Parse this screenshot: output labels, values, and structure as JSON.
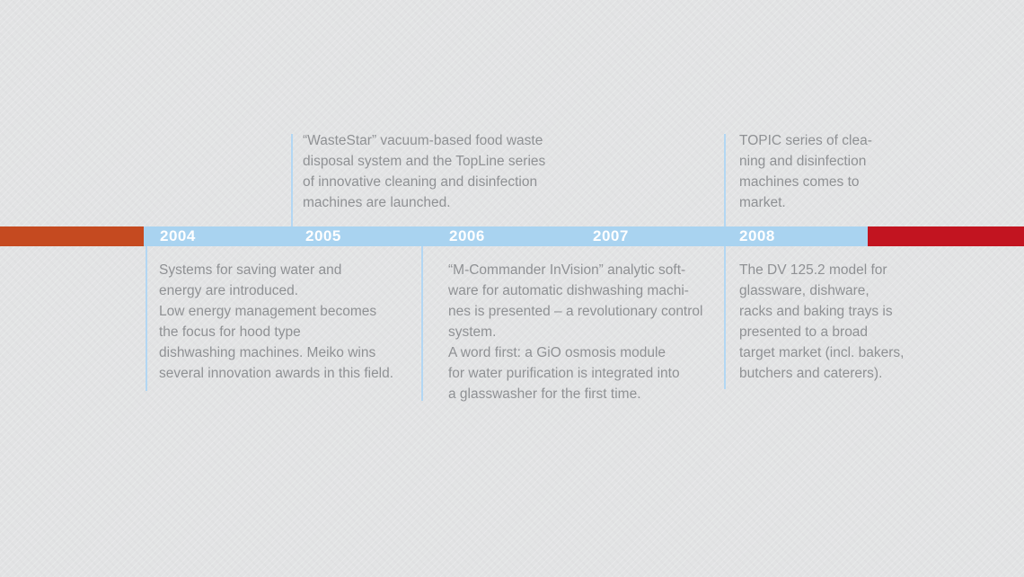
{
  "diagram_type": "company-history-timeline",
  "colors": {
    "background": "#e2e3e4",
    "bar_previous_period": "#c54a20",
    "bar_active_period": "#a9d3f0",
    "bar_next_period": "#c21420",
    "year_text": "#ffffff",
    "body_text": "#8f9194",
    "connector_line": "#b3d7f3"
  },
  "timeline": {
    "years": [
      {
        "label": "2004"
      },
      {
        "label": "2005"
      },
      {
        "label": "2006"
      },
      {
        "label": "2007"
      },
      {
        "label": "2008"
      }
    ]
  },
  "events": {
    "above": [
      {
        "year": "2005",
        "text": "“WasteStar” vacuum-based food waste\ndisposal system and the TopLine series\nof innovative cleaning and disinfection\nmachines are launched."
      },
      {
        "year": "2008",
        "text": "TOPIC series of clea-\nning and disinfection\nmachines comes to\nmarket."
      }
    ],
    "below": [
      {
        "year": "2004",
        "text": "Systems for saving water and\nenergy are introduced.\nLow energy management becomes\nthe focus for hood type\ndishwashing machines. Meiko wins\nseveral innovation awards in this field."
      },
      {
        "year": "2006",
        "text": "“M-Commander InVision” analytic soft-\nware for automatic dishwashing machi-\nnes is presented – a revolutionary control\nsystem.\nA word first: a GiO osmosis module\nfor water purification is integrated into\na glasswasher for the first time."
      },
      {
        "year": "2008",
        "text": "The DV 125.2 model for\nglassware, dishware,\nracks and baking trays is\npresented to a broad\ntarget market (incl. bakers,\nbutchers and caterers)."
      }
    ]
  }
}
